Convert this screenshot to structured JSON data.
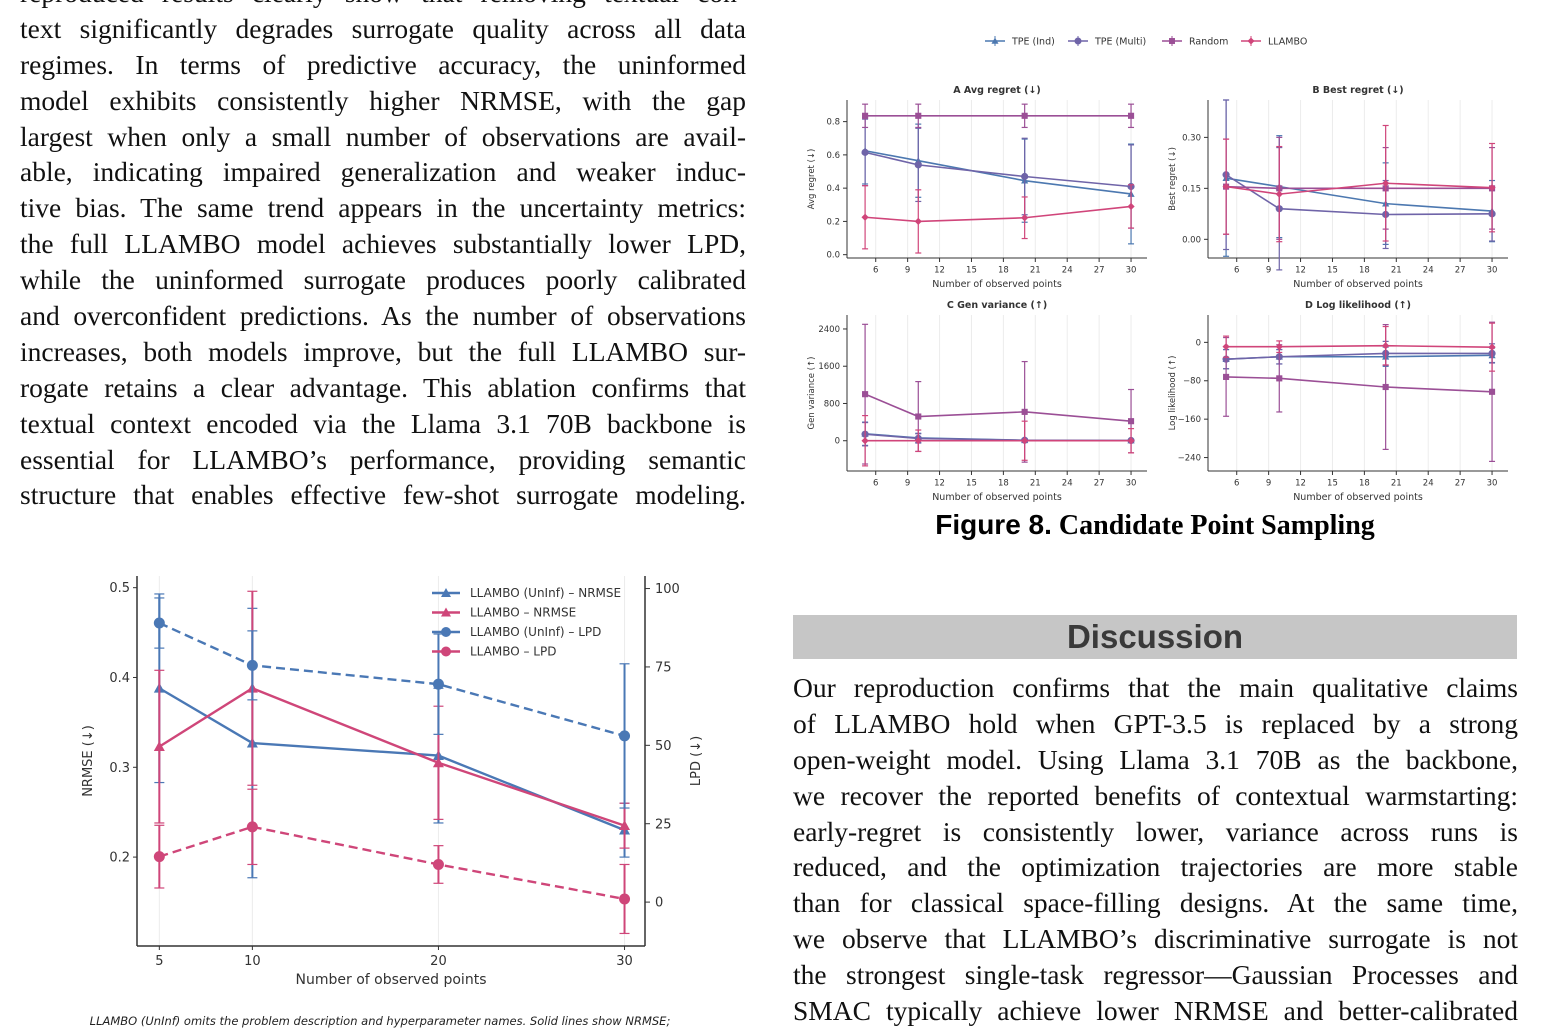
{
  "left_column": {
    "lines": [
      "reproduced results clearly show that removing textual con-",
      "text significantly degrades surrogate quality across all data",
      "regimes.  In terms of predictive accuracy, the uninformed",
      "model exhibits consistently higher NRMSE, with the gap",
      "largest when only a small number of observations are avail-",
      "able, indicating impaired generalization and weaker induc-",
      "tive bias. The same trend appears in the uncertainty metrics:",
      "the full LLAMBO model achieves substantially lower LPD,",
      "while the uninformed surrogate produces poorly calibrated",
      "and overconfident predictions. As the number of observations",
      "increases, both models improve, but the full LLAMBO sur-",
      "rogate retains a clear advantage. This ablation confirms that",
      "textual context encoded via the Llama 3.1 70B backbone is",
      "essential for LLAMBO’s performance, providing semantic",
      "structure that enables effective few-shot surrogate modeling."
    ]
  },
  "figure8": {
    "caption_label": "Figure 8.",
    "caption_text": "Candidate Point Sampling"
  },
  "discussion": {
    "heading": "Discussion",
    "lines": [
      "Our reproduction confirms that the main qualitative claims",
      "of LLAMBO hold when GPT-3.5 is replaced by a strong",
      "open-weight model. Using Llama 3.1 70B as the backbone,",
      "we recover the reported benefits of contextual warmstarting:",
      "early-regret is consistently lower, variance across runs is",
      "reduced, and the optimization trajectories are more stable",
      "than for classical space-filling designs.  At the same time,",
      "we observe that LLAMBO’s discriminative surrogate is not",
      "the strongest single-task regressor—Gaussian Processes and",
      "SMAC typically achieve lower NRMSE and better-calibrated"
    ]
  },
  "ablation_caption": "LLAMBO (UnInf) omits the problem description and hyperparameter names. Solid lines show NRMSE;",
  "chart_data": [
    {
      "id": "A",
      "type": "line",
      "title": "A  Avg regret (↓)",
      "xlabel": "Number of observed points",
      "ylabel": "Avg regret (↓)",
      "x": [
        5,
        10,
        20,
        30
      ],
      "xticks": [
        6,
        9,
        12,
        15,
        18,
        21,
        24,
        27,
        30
      ],
      "yticks": [
        0.0,
        0.2,
        0.4,
        0.6,
        0.8
      ],
      "ytick_labels": [
        "0.0",
        "0.2",
        "0.4",
        "0.6",
        "0.8"
      ],
      "ylim": [
        -0.02,
        0.93
      ],
      "xlim": [
        3.3,
        31.5
      ],
      "grid": "vertical",
      "legend": "top-center (shared)",
      "series": [
        {
          "name": "TPE (Ind)",
          "color": "#4c78b0",
          "marker": "triangle",
          "values": [
            0.625,
            0.565,
            0.445,
            0.365
          ],
          "err": [
            0.2,
            0.22,
            0.25,
            0.3
          ]
        },
        {
          "name": "TPE (Multi)",
          "color": "#6f64a8",
          "marker": "circle",
          "values": [
            0.615,
            0.54,
            0.47,
            0.41
          ],
          "err": [
            0.2,
            0.22,
            0.23,
            0.25
          ]
        },
        {
          "name": "Random",
          "color": "#9b4f96",
          "marker": "square",
          "values": [
            0.835,
            0.835,
            0.835,
            0.835
          ],
          "err": [
            0.07,
            0.07,
            0.07,
            0.07
          ]
        },
        {
          "name": "LLAMBO",
          "color": "#d0457a",
          "marker": "diamond",
          "values": [
            0.225,
            0.2,
            0.222,
            0.29
          ],
          "err": [
            0.19,
            0.19,
            0.125,
            0.13
          ]
        }
      ]
    },
    {
      "id": "B",
      "type": "line",
      "title": "B  Best regret (↓)",
      "xlabel": "Number of observed points",
      "ylabel": "Best regret (↓)",
      "x": [
        5,
        10,
        20,
        30
      ],
      "xticks": [
        6,
        9,
        12,
        15,
        18,
        21,
        24,
        27,
        30
      ],
      "yticks": [
        0.0,
        0.15,
        0.3
      ],
      "ytick_labels": [
        "0.00",
        "0.15",
        "0.30"
      ],
      "ylim": [
        -0.055,
        0.41
      ],
      "xlim": [
        3.3,
        31.5
      ],
      "grid": "vertical",
      "series": [
        {
          "name": "TPE (Ind)",
          "color": "#4c78b0",
          "marker": "triangle",
          "values": [
            0.18,
            0.155,
            0.105,
            0.083
          ],
          "err": [
            0.23,
            0.15,
            0.12,
            0.09
          ]
        },
        {
          "name": "TPE (Multi)",
          "color": "#6f64a8",
          "marker": "circle",
          "values": [
            0.19,
            0.09,
            0.073,
            0.075
          ],
          "err": [
            0.22,
            0.18,
            0.1,
            0.08
          ]
        },
        {
          "name": "Random",
          "color": "#9b4f96",
          "marker": "square",
          "values": [
            0.155,
            0.15,
            0.15,
            0.15
          ],
          "err": [
            0.14,
            0.15,
            0.12,
            0.12
          ]
        },
        {
          "name": "LLAMBO",
          "color": "#d0457a",
          "marker": "diamond",
          "values": [
            0.155,
            0.133,
            0.165,
            0.152
          ],
          "err": [
            0.14,
            0.14,
            0.17,
            0.13
          ]
        }
      ]
    },
    {
      "id": "C",
      "type": "line",
      "title": "C  Gen variance (↑)",
      "xlabel": "Number of observed points",
      "ylabel": "Gen variance (↑)",
      "x": [
        5,
        10,
        20,
        30
      ],
      "xticks": [
        6,
        9,
        12,
        15,
        18,
        21,
        24,
        27,
        30
      ],
      "yticks": [
        0,
        800,
        1600,
        2400
      ],
      "ytick_labels": [
        "0",
        "800",
        "1600",
        "2400"
      ],
      "ylim": [
        -650,
        2700
      ],
      "xlim": [
        3.3,
        31.5
      ],
      "grid": "vertical",
      "series": [
        {
          "name": "TPE (Ind)",
          "color": "#4c78b0",
          "marker": "triangle",
          "values": [
            150,
            60,
            10,
            5
          ],
          "err": [
            250,
            100,
            30,
            10
          ]
        },
        {
          "name": "TPE (Multi)",
          "color": "#6f64a8",
          "marker": "circle",
          "values": [
            140,
            50,
            10,
            5
          ],
          "err": [
            250,
            100,
            30,
            10
          ]
        },
        {
          "name": "Random",
          "color": "#9b4f96",
          "marker": "square",
          "values": [
            1000,
            520,
            620,
            420
          ],
          "err": [
            1500,
            750,
            1080,
            680
          ]
        },
        {
          "name": "LLAMBO",
          "color": "#d0457a",
          "marker": "diamond",
          "values": [
            0,
            0,
            0,
            0
          ],
          "err": [
            540,
            230,
            420,
            260
          ]
        }
      ]
    },
    {
      "id": "D",
      "type": "line",
      "title": "D  Log likelihood (↑)",
      "xlabel": "Number of observed points",
      "ylabel": "Log likelihood (↑)",
      "x": [
        5,
        10,
        20,
        30
      ],
      "xticks": [
        6,
        9,
        12,
        15,
        18,
        21,
        24,
        27,
        30
      ],
      "yticks": [
        -240,
        -160,
        -80,
        0
      ],
      "ytick_labels": [
        "−240",
        "−160",
        "−80",
        "0"
      ],
      "ylim": [
        -268,
        57
      ],
      "xlim": [
        3.3,
        31.5
      ],
      "grid": "vertical",
      "series": [
        {
          "name": "TPE (Ind)",
          "color": "#4c78b0",
          "marker": "triangle",
          "values": [
            -35,
            -30,
            -30,
            -27
          ],
          "err": [
            20,
            15,
            20,
            15
          ]
        },
        {
          "name": "TPE (Multi)",
          "color": "#6f64a8",
          "marker": "circle",
          "values": [
            -35,
            -30,
            -23,
            -23
          ],
          "err": [
            20,
            15,
            25,
            20
          ]
        },
        {
          "name": "Random",
          "color": "#9b4f96",
          "marker": "square",
          "values": [
            -72,
            -75,
            -93,
            -103
          ],
          "err": [
            82,
            70,
            130,
            145
          ]
        },
        {
          "name": "LLAMBO",
          "color": "#d0457a",
          "marker": "diamond",
          "values": [
            -9,
            -9,
            -7,
            -10
          ],
          "err": [
            22,
            12,
            40,
            50
          ]
        }
      ]
    },
    {
      "id": "ablation",
      "type": "line",
      "xlabel": "Number of observed points",
      "ylabel": "NRMSE (↓)",
      "y2label": "LPD (↓)",
      "x": [
        5,
        10,
        20,
        30
      ],
      "xticks": [
        5,
        10,
        20,
        30
      ],
      "yticks": [
        0.2,
        0.3,
        0.4,
        0.5
      ],
      "ytick_labels": [
        "0.2",
        "0.3",
        "0.4",
        "0.5"
      ],
      "y2ticks": [
        0,
        25,
        50,
        75,
        100
      ],
      "ylim": [
        0.101,
        0.513
      ],
      "y2lim": [
        -14,
        104
      ],
      "xlim": [
        3.8,
        31.1
      ],
      "grid": "vertical",
      "legend": "top-right",
      "series": [
        {
          "name": "LLAMBO (UnInf) – NRMSE",
          "color": "#4a78b5",
          "marker": "triangle",
          "dash": false,
          "axis": "left",
          "values": [
            0.388,
            0.327,
            0.313,
            0.23
          ],
          "err": [
            0.105,
            0.15,
            0.075,
            0.03
          ]
        },
        {
          "name": "LLAMBO – NRMSE",
          "color": "#cf4679",
          "marker": "triangle",
          "dash": false,
          "axis": "left",
          "values": [
            0.323,
            0.388,
            0.305,
            0.235
          ],
          "err": [
            0.085,
            0.108,
            0.063,
            0.025
          ]
        },
        {
          "name": "LLAMBO (UnInf) – LPD",
          "color": "#4a78b5",
          "marker": "circle",
          "dash": true,
          "axis": "right",
          "values": [
            89,
            75.5,
            69.5,
            53
          ],
          "err": [
            8,
            11,
            16,
            23
          ]
        },
        {
          "name": "LLAMBO – LPD",
          "color": "#cf4679",
          "marker": "circle",
          "dash": true,
          "axis": "right",
          "values": [
            14.5,
            24,
            12,
            1
          ],
          "err": [
            10,
            12,
            6,
            11
          ]
        }
      ]
    }
  ]
}
